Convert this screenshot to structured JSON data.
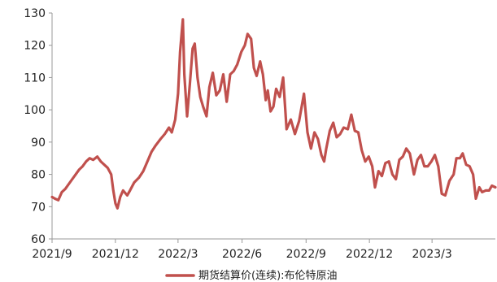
{
  "chart_data": {
    "type": "line",
    "title": "",
    "xlabel": "",
    "ylabel": "",
    "ylim": [
      60,
      130
    ],
    "y_ticks": [
      "60",
      "70",
      "80",
      "90",
      "100",
      "110",
      "120",
      "130"
    ],
    "x_tick_labels": [
      "2021/9",
      "2021/12",
      "2022/3",
      "2022/6",
      "2022/9",
      "2022/12",
      "2023/3"
    ],
    "x_tick_dates": [
      "2021-09-01",
      "2021-12-01",
      "2022-03-01",
      "2022-06-01",
      "2022-09-01",
      "2022-12-01",
      "2023-03-01"
    ],
    "x_range": [
      "2021-09-01",
      "2023-05-31"
    ],
    "grid": false,
    "legend_position": "bottom-center",
    "series": [
      {
        "name": "期货结算价(连续):布伦特原油",
        "color": "#c0504d",
        "points": [
          [
            "2021-09-01",
            73.0
          ],
          [
            "2021-09-05",
            72.5
          ],
          [
            "2021-09-10",
            72.0
          ],
          [
            "2021-09-15",
            74.5
          ],
          [
            "2021-09-20",
            75.5
          ],
          [
            "2021-09-25",
            77.0
          ],
          [
            "2021-09-30",
            78.5
          ],
          [
            "2021-10-05",
            80.0
          ],
          [
            "2021-10-10",
            81.5
          ],
          [
            "2021-10-15",
            82.5
          ],
          [
            "2021-10-20",
            84.0
          ],
          [
            "2021-10-25",
            85.0
          ],
          [
            "2021-10-30",
            84.5
          ],
          [
            "2021-11-05",
            85.5
          ],
          [
            "2021-11-10",
            84.0
          ],
          [
            "2021-11-15",
            83.0
          ],
          [
            "2021-11-20",
            82.0
          ],
          [
            "2021-11-25",
            80.0
          ],
          [
            "2021-11-28",
            75.0
          ],
          [
            "2021-12-01",
            71.0
          ],
          [
            "2021-12-04",
            69.5
          ],
          [
            "2021-12-08",
            73.0
          ],
          [
            "2021-12-12",
            75.0
          ],
          [
            "2021-12-18",
            73.5
          ],
          [
            "2021-12-22",
            75.0
          ],
          [
            "2021-12-28",
            77.5
          ],
          [
            "2022-01-04",
            79.0
          ],
          [
            "2022-01-10",
            81.0
          ],
          [
            "2022-01-16",
            84.0
          ],
          [
            "2022-01-22",
            87.0
          ],
          [
            "2022-01-28",
            89.0
          ],
          [
            "2022-02-04",
            91.0
          ],
          [
            "2022-02-10",
            92.5
          ],
          [
            "2022-02-16",
            94.5
          ],
          [
            "2022-02-20",
            93.0
          ],
          [
            "2022-02-25",
            97.0
          ],
          [
            "2022-03-01",
            105.0
          ],
          [
            "2022-03-04",
            118.0
          ],
          [
            "2022-03-08",
            128.0
          ],
          [
            "2022-03-10",
            111.0
          ],
          [
            "2022-03-14",
            98.0
          ],
          [
            "2022-03-18",
            108.0
          ],
          [
            "2022-03-22",
            119.0
          ],
          [
            "2022-03-25",
            120.5
          ],
          [
            "2022-03-29",
            110.0
          ],
          [
            "2022-04-02",
            104.0
          ],
          [
            "2022-04-06",
            101.0
          ],
          [
            "2022-04-11",
            98.0
          ],
          [
            "2022-04-15",
            107.0
          ],
          [
            "2022-04-20",
            111.5
          ],
          [
            "2022-04-25",
            104.5
          ],
          [
            "2022-04-30",
            106.0
          ],
          [
            "2022-05-05",
            111.0
          ],
          [
            "2022-05-10",
            102.5
          ],
          [
            "2022-05-15",
            111.0
          ],
          [
            "2022-05-20",
            112.0
          ],
          [
            "2022-05-25",
            114.0
          ],
          [
            "2022-05-31",
            118.0
          ],
          [
            "2022-06-05",
            120.0
          ],
          [
            "2022-06-09",
            123.5
          ],
          [
            "2022-06-14",
            122.0
          ],
          [
            "2022-06-18",
            113.0
          ],
          [
            "2022-06-22",
            110.5
          ],
          [
            "2022-06-27",
            115.0
          ],
          [
            "2022-07-01",
            111.0
          ],
          [
            "2022-07-05",
            103.0
          ],
          [
            "2022-07-08",
            106.0
          ],
          [
            "2022-07-12",
            99.5
          ],
          [
            "2022-07-16",
            101.0
          ],
          [
            "2022-07-20",
            106.5
          ],
          [
            "2022-07-25",
            104.0
          ],
          [
            "2022-07-30",
            110.0
          ],
          [
            "2022-08-04",
            94.0
          ],
          [
            "2022-08-10",
            97.0
          ],
          [
            "2022-08-16",
            92.5
          ],
          [
            "2022-08-22",
            96.5
          ],
          [
            "2022-08-29",
            105.0
          ],
          [
            "2022-09-03",
            93.0
          ],
          [
            "2022-09-08",
            88.0
          ],
          [
            "2022-09-13",
            93.0
          ],
          [
            "2022-09-18",
            91.0
          ],
          [
            "2022-09-23",
            86.0
          ],
          [
            "2022-09-27",
            84.0
          ],
          [
            "2022-09-30",
            88.0
          ],
          [
            "2022-10-05",
            93.5
          ],
          [
            "2022-10-10",
            96.0
          ],
          [
            "2022-10-15",
            91.5
          ],
          [
            "2022-10-20",
            92.5
          ],
          [
            "2022-10-25",
            94.5
          ],
          [
            "2022-10-31",
            94.0
          ],
          [
            "2022-11-05",
            98.5
          ],
          [
            "2022-11-10",
            93.5
          ],
          [
            "2022-11-15",
            93.0
          ],
          [
            "2022-11-20",
            87.5
          ],
          [
            "2022-11-25",
            84.0
          ],
          [
            "2022-11-30",
            85.5
          ],
          [
            "2022-12-05",
            82.5
          ],
          [
            "2022-12-09",
            76.0
          ],
          [
            "2022-12-14",
            81.0
          ],
          [
            "2022-12-19",
            79.5
          ],
          [
            "2022-12-24",
            83.5
          ],
          [
            "2022-12-29",
            84.0
          ],
          [
            "2023-01-03",
            80.0
          ],
          [
            "2023-01-08",
            78.5
          ],
          [
            "2023-01-13",
            84.5
          ],
          [
            "2023-01-18",
            85.5
          ],
          [
            "2023-01-23",
            88.0
          ],
          [
            "2023-01-28",
            86.5
          ],
          [
            "2023-02-03",
            80.0
          ],
          [
            "2023-02-08",
            84.5
          ],
          [
            "2023-02-13",
            86.0
          ],
          [
            "2023-02-18",
            82.5
          ],
          [
            "2023-02-23",
            82.5
          ],
          [
            "2023-02-28",
            84.0
          ],
          [
            "2023-03-05",
            86.0
          ],
          [
            "2023-03-10",
            82.5
          ],
          [
            "2023-03-15",
            74.0
          ],
          [
            "2023-03-20",
            73.5
          ],
          [
            "2023-03-26",
            78.0
          ],
          [
            "2023-04-01",
            80.0
          ],
          [
            "2023-04-05",
            85.0
          ],
          [
            "2023-04-10",
            85.0
          ],
          [
            "2023-04-14",
            86.5
          ],
          [
            "2023-04-19",
            83.0
          ],
          [
            "2023-04-24",
            82.5
          ],
          [
            "2023-04-29",
            80.0
          ],
          [
            "2023-05-03",
            72.5
          ],
          [
            "2023-05-08",
            76.0
          ],
          [
            "2023-05-12",
            74.5
          ],
          [
            "2023-05-17",
            75.0
          ],
          [
            "2023-05-22",
            75.0
          ],
          [
            "2023-05-26",
            76.5
          ],
          [
            "2023-05-31",
            76.0
          ]
        ]
      }
    ]
  }
}
